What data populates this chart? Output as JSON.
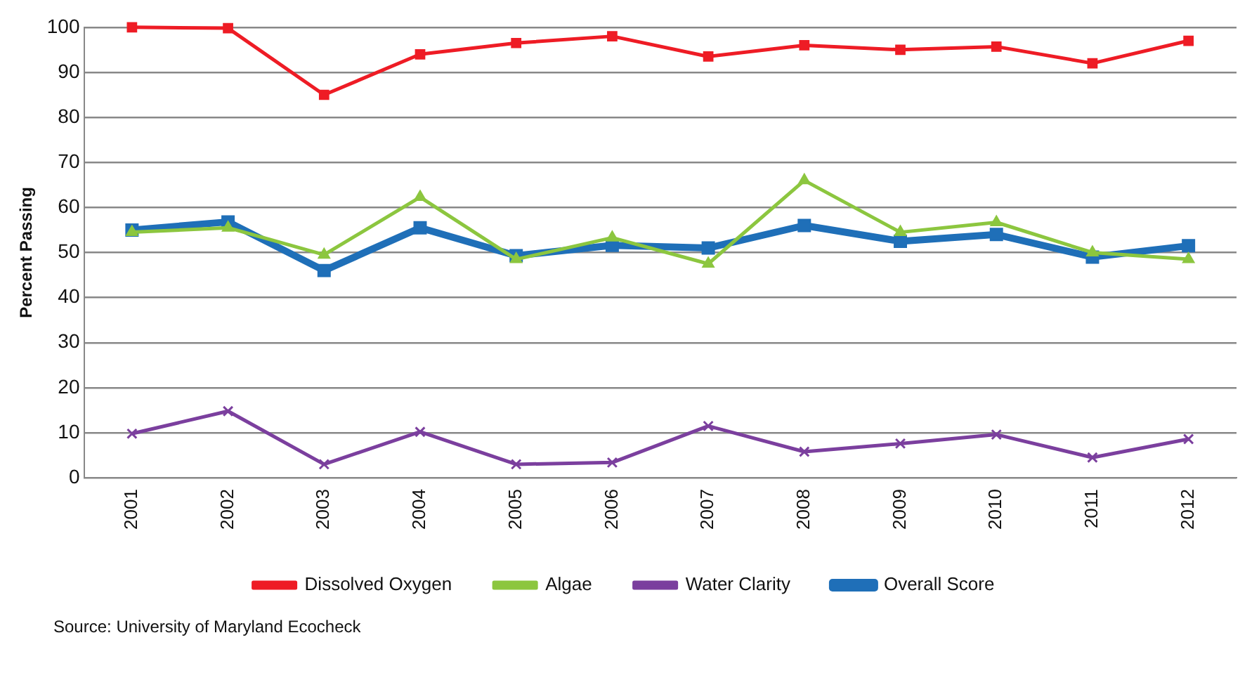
{
  "chart_data": {
    "type": "line",
    "ylabel": "Percent Passing",
    "categories": [
      "2001",
      "2002",
      "2003",
      "2004",
      "2005",
      "2006",
      "2007",
      "2008",
      "2009",
      "2010",
      "2011",
      "2012"
    ],
    "series": [
      {
        "name": "Dissolved Oxygen",
        "color": "#ee1c25",
        "marker": "square",
        "values": [
          100,
          99.8,
          85,
          94,
          96.5,
          98,
          93.5,
          96,
          95,
          95.7,
          92,
          97
        ]
      },
      {
        "name": "Algae",
        "color": "#8cc63f",
        "marker": "triangle",
        "values": [
          54.5,
          55.5,
          49.5,
          62.3,
          48.5,
          53.3,
          47.5,
          66,
          54.5,
          56.7,
          50,
          48.5
        ]
      },
      {
        "name": "Water Clarity",
        "color": "#7b3f9e",
        "marker": "cross",
        "values": [
          9.8,
          14.8,
          3,
          10.2,
          3,
          3.4,
          11.5,
          5.8,
          7.6,
          9.6,
          4.5,
          8.6
        ]
      },
      {
        "name": "Overall Score",
        "color": "#1f6fb8",
        "marker": "square",
        "values": [
          55,
          56.8,
          46,
          55.5,
          49.3,
          51.6,
          51,
          56,
          52.5,
          54,
          49,
          51.5
        ]
      }
    ],
    "ylim": [
      0,
      100
    ],
    "yticks": [
      0,
      10,
      20,
      30,
      40,
      50,
      60,
      70,
      80,
      90,
      100
    ],
    "grid": "y",
    "legend": "bottom",
    "annotations": [
      "Source: University of Maryland Ecocheck"
    ]
  }
}
